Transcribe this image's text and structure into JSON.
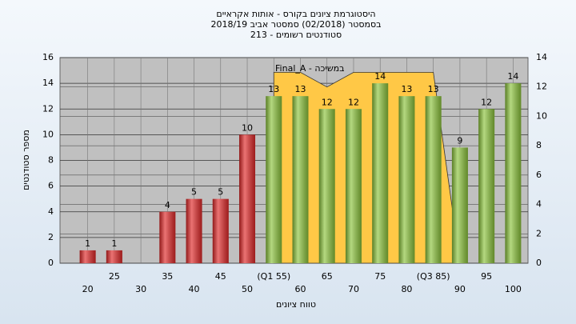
{
  "chart_data": {
    "type": "bar",
    "title_lines": [
      "היסטוגרמת ציונים בקורס - אותות אקראיים",
      "בסמסטר  (02/2018)  סמסטר אביב 2018/19",
      "סטודנטים רשומים - 213"
    ],
    "x_label": "טווח ציונים",
    "y_label": "מספר סטודנטים",
    "categories": [
      "20",
      "25",
      "30",
      "35",
      "40",
      "45",
      "50",
      "(Q1 55)",
      "60",
      "65",
      "70",
      "75",
      "80",
      "(Q3 85)",
      "90",
      "95",
      "100"
    ],
    "values": [
      1,
      1,
      0,
      4,
      5,
      5,
      10,
      13,
      13,
      12,
      12,
      14,
      13,
      13,
      9,
      12,
      14
    ],
    "colors": [
      "#e02828",
      "#e02828",
      "#e02828",
      "#e02828",
      "#e02828",
      "#e02828",
      "#e02828",
      "#8cc43c",
      "#8cc43c",
      "#8cc43c",
      "#8cc43c",
      "#8cc43c",
      "#8cc43c",
      "#8cc43c",
      "#8cc43c",
      "#8cc43c",
      "#8cc43c"
    ],
    "area": {
      "name": "Final_A - במשיכה",
      "color": "#ffc846",
      "axis": "y2",
      "values": [
        null,
        null,
        null,
        null,
        null,
        null,
        null,
        13,
        13,
        12,
        13,
        13,
        13,
        13,
        0,
        null,
        null
      ]
    },
    "ylim": [
      0,
      16
    ],
    "yticks": [
      0,
      2,
      4,
      6,
      8,
      10,
      12,
      14,
      16
    ],
    "y2lim": [
      0,
      14
    ],
    "y2ticks": [
      0,
      2,
      4,
      6,
      8,
      10,
      12,
      14
    ],
    "grid": true
  }
}
